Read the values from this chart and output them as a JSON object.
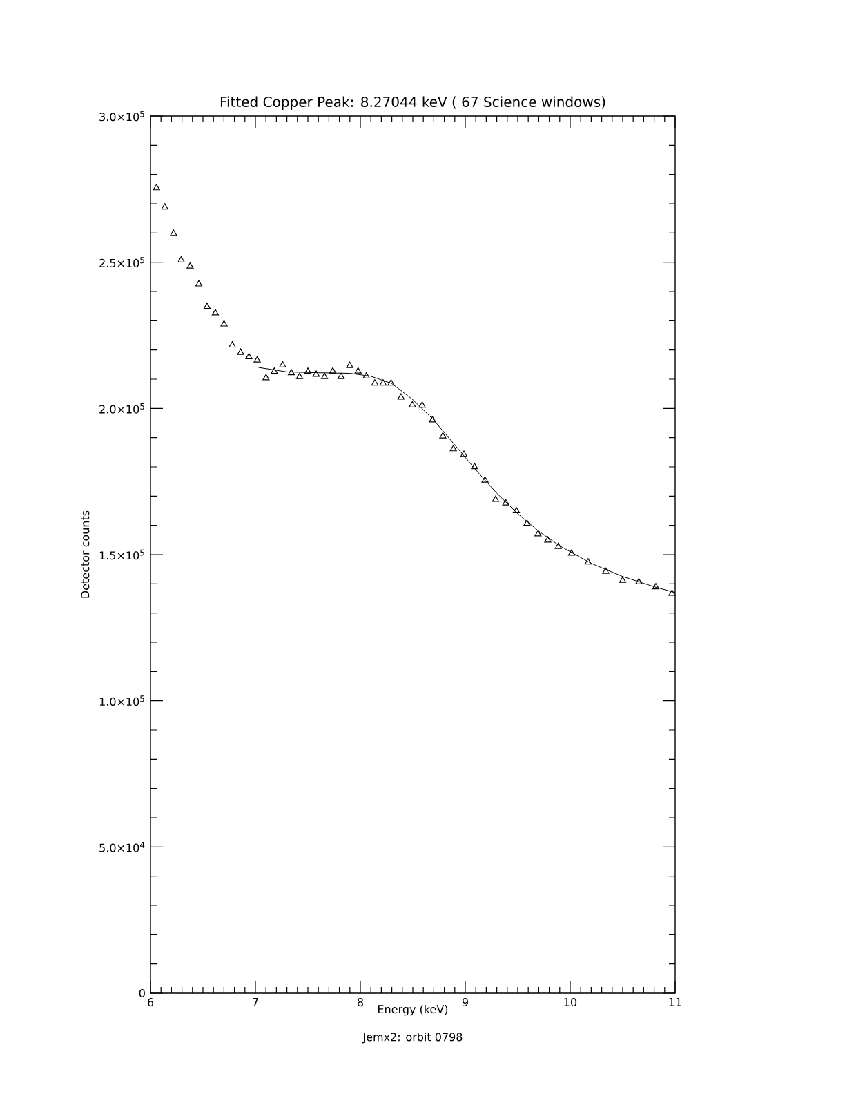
{
  "chart_data": {
    "type": "scatter",
    "title": "Fitted Copper Peak: 8.27044 keV ( 67 Science windows)",
    "xlabel": "Energy (keV)",
    "ylabel": "Detector counts",
    "annotations": [
      "Jemx2: orbit 0798"
    ],
    "xlim": [
      6,
      11
    ],
    "ylim": [
      0,
      300000
    ],
    "xticks": [
      6,
      7,
      8,
      9,
      10,
      11
    ],
    "yticks": [
      0,
      {
        "value": 50000,
        "label": "5.0×10$^{4}$"
      },
      {
        "value": 100000,
        "label": "1.0×10$^{5}$"
      },
      {
        "value": 150000,
        "label": "1.5×10$^{5}$"
      },
      {
        "value": 200000,
        "label": "2.0×10$^{5}$"
      },
      {
        "value": 250000,
        "label": "2.5×10$^{5}$"
      },
      {
        "value": 300000,
        "label": "3.0×10$^{5}$"
      }
    ],
    "series": [
      {
        "marker": "triangle",
        "color": "#000000",
        "x": [
          6.057,
          6.136,
          6.22,
          6.293,
          6.378,
          6.461,
          6.539,
          6.618,
          6.701,
          6.78,
          6.859,
          6.938,
          7.017,
          7.101,
          7.18,
          7.259,
          7.342,
          7.421,
          7.5,
          7.579,
          7.658,
          7.737,
          7.816,
          7.899,
          7.978,
          8.057,
          8.138,
          8.217,
          8.293,
          8.388,
          8.496,
          8.589,
          8.687,
          8.786,
          8.886,
          8.987,
          9.088,
          9.188,
          9.289,
          9.386,
          9.487,
          9.588,
          9.693,
          9.786,
          9.886,
          10.013,
          10.171,
          10.338,
          10.5,
          10.654,
          10.816,
          10.97
        ],
        "values": [
          275400,
          268800,
          259800,
          250700,
          248600,
          242500,
          234800,
          232600,
          228800,
          221600,
          219100,
          217600,
          216500,
          210400,
          212600,
          214800,
          212100,
          210800,
          212600,
          211600,
          210800,
          212700,
          210800,
          214600,
          212700,
          211000,
          208600,
          208600,
          208600,
          203800,
          201100,
          201000,
          196000,
          190500,
          186100,
          184200,
          180000,
          175400,
          168800,
          167600,
          164900,
          160600,
          157000,
          154900,
          152700,
          150400,
          147400,
          144200,
          141100,
          140600,
          138900,
          136700
        ]
      },
      {
        "type": "line",
        "marker": "none",
        "line_style": "solid",
        "color": "#000000",
        "x": [
          7.03,
          7.3,
          7.6,
          7.9,
          8.1,
          8.3,
          8.5,
          8.7,
          8.9,
          9.1,
          9.3,
          9.5,
          9.7,
          9.9,
          10.2,
          10.5,
          10.8,
          11.0
        ],
        "values": [
          214000,
          212500,
          212200,
          212000,
          211000,
          208500,
          203000,
          196000,
          187500,
          179000,
          171000,
          164000,
          158000,
          153000,
          147000,
          142500,
          139000,
          137000
        ]
      }
    ]
  }
}
